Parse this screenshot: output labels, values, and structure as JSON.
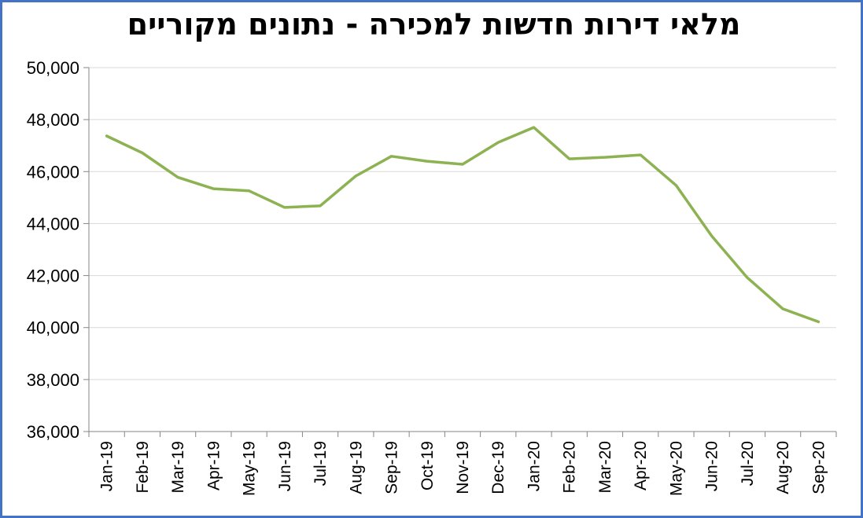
{
  "chart_data": {
    "type": "line",
    "title": "מלאי דירות חדשות למכירה - נתונים מקוריים",
    "xlabel": "",
    "ylabel": "",
    "ylim": [
      36000,
      50000
    ],
    "yticks": [
      36000,
      38000,
      40000,
      42000,
      44000,
      46000,
      48000,
      50000
    ],
    "ytick_labels": [
      "36,000",
      "38,000",
      "40,000",
      "42,000",
      "44,000",
      "46,000",
      "48,000",
      "50,000"
    ],
    "categories": [
      "Jan-19",
      "Feb-19",
      "Mar-19",
      "Apr-19",
      "May-19",
      "Jun-19",
      "Jul-19",
      "Aug-19",
      "Sep-19",
      "Oct-19",
      "Nov-19",
      "Dec-19",
      "Jan-20",
      "Feb-20",
      "Mar-20",
      "Apr-20",
      "May-20",
      "Jun-20",
      "Jul-20",
      "Aug-20",
      "Sep-20"
    ],
    "series": [
      {
        "values": [
          47370,
          46720,
          45780,
          45340,
          45260,
          44620,
          44680,
          45830,
          46590,
          46400,
          46280,
          47120,
          47700,
          46490,
          46550,
          46640,
          45470,
          43520,
          41920,
          40720,
          40220
        ],
        "color": "#8db252"
      }
    ],
    "grid": true,
    "legend": "none"
  }
}
